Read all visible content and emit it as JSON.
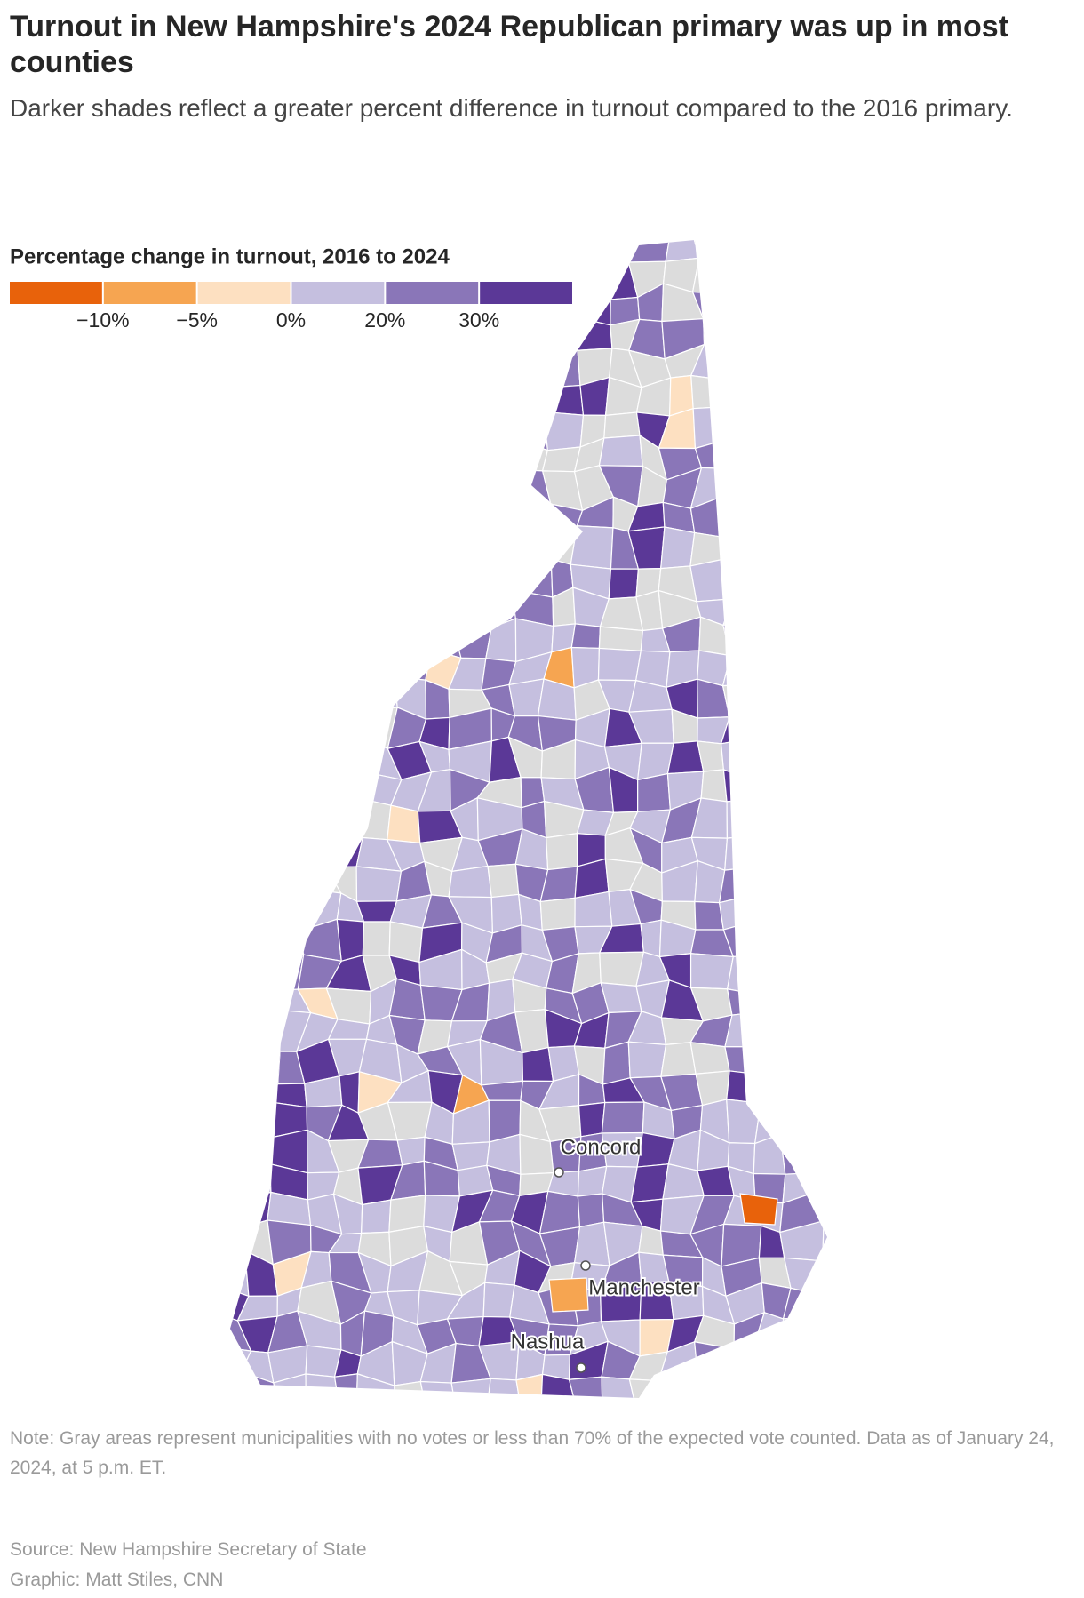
{
  "header": {
    "title": "Turnout in New Hampshire's 2024 Republican primary was up in most counties",
    "subtitle": "Darker shades reflect a greater percent difference in turnout compared to the 2016 primary."
  },
  "legend": {
    "title": "Percentage change in turnout, 2016 to 2024",
    "colors": [
      "#e8620b",
      "#f6a551",
      "#fde0c1",
      "#c5bfdf",
      "#8a76b8",
      "#5b3897"
    ],
    "ticks": [
      {
        "value": -10,
        "label": "−10%"
      },
      {
        "value": -5,
        "label": "−5%"
      },
      {
        "value": 0,
        "label": "0%"
      },
      {
        "value": 20,
        "label": "20%"
      },
      {
        "value": 30,
        "label": "30%"
      }
    ]
  },
  "map": {
    "no_data_color": "#dcdcdc",
    "cities": [
      {
        "name": "Concord"
      },
      {
        "name": "Manchester"
      },
      {
        "name": "Nashua"
      }
    ]
  },
  "footer": {
    "note": "Note: Gray areas represent municipalities with no votes or less than 70% of the expected vote counted. Data as of January 24, 2024, at 5 p.m. ET.",
    "source": "Source: New Hampshire Secretary of State",
    "credit": "Graphic: Matt Stiles, CNN"
  }
}
